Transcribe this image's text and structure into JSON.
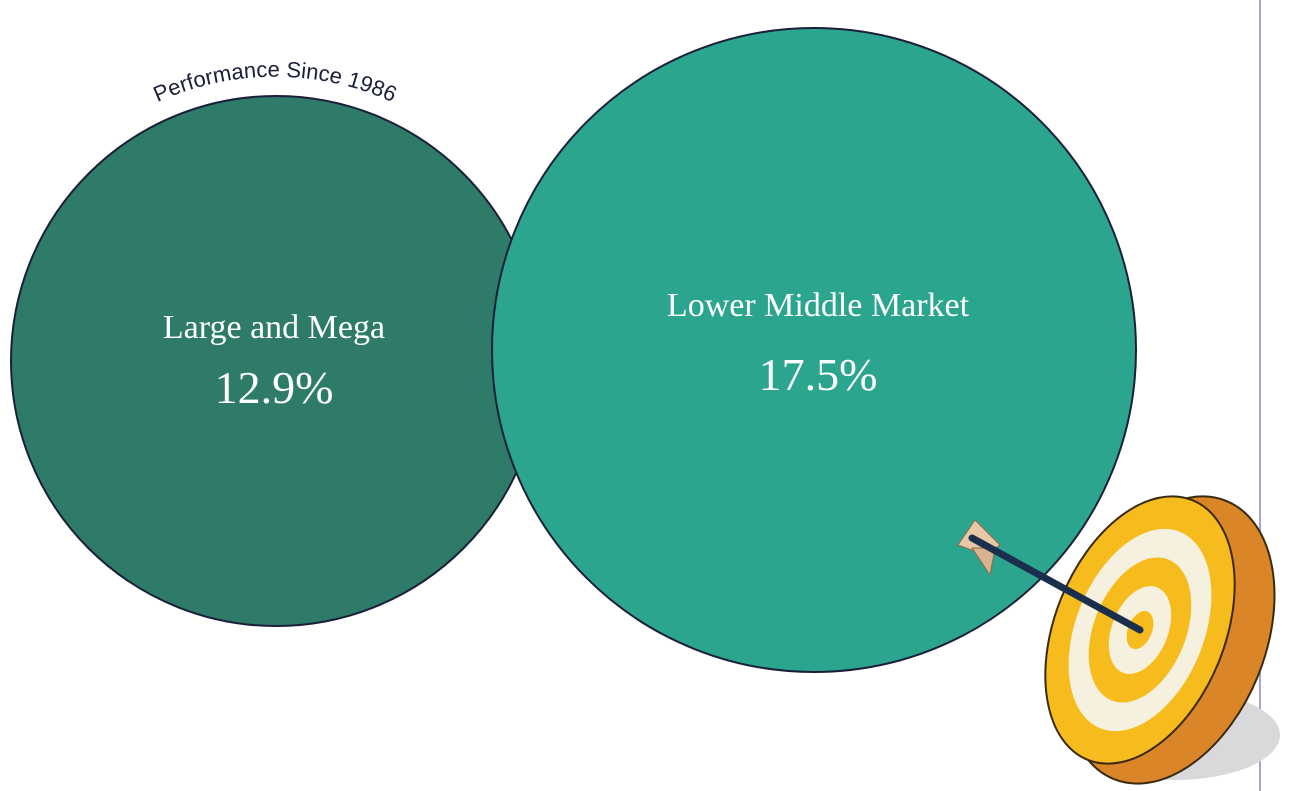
{
  "arc_label": "Performance Since 1986",
  "circles": [
    {
      "label": "Large and Mega",
      "value": "12.9%"
    },
    {
      "label": "Lower Middle Market",
      "value": "17.5%"
    }
  ]
}
